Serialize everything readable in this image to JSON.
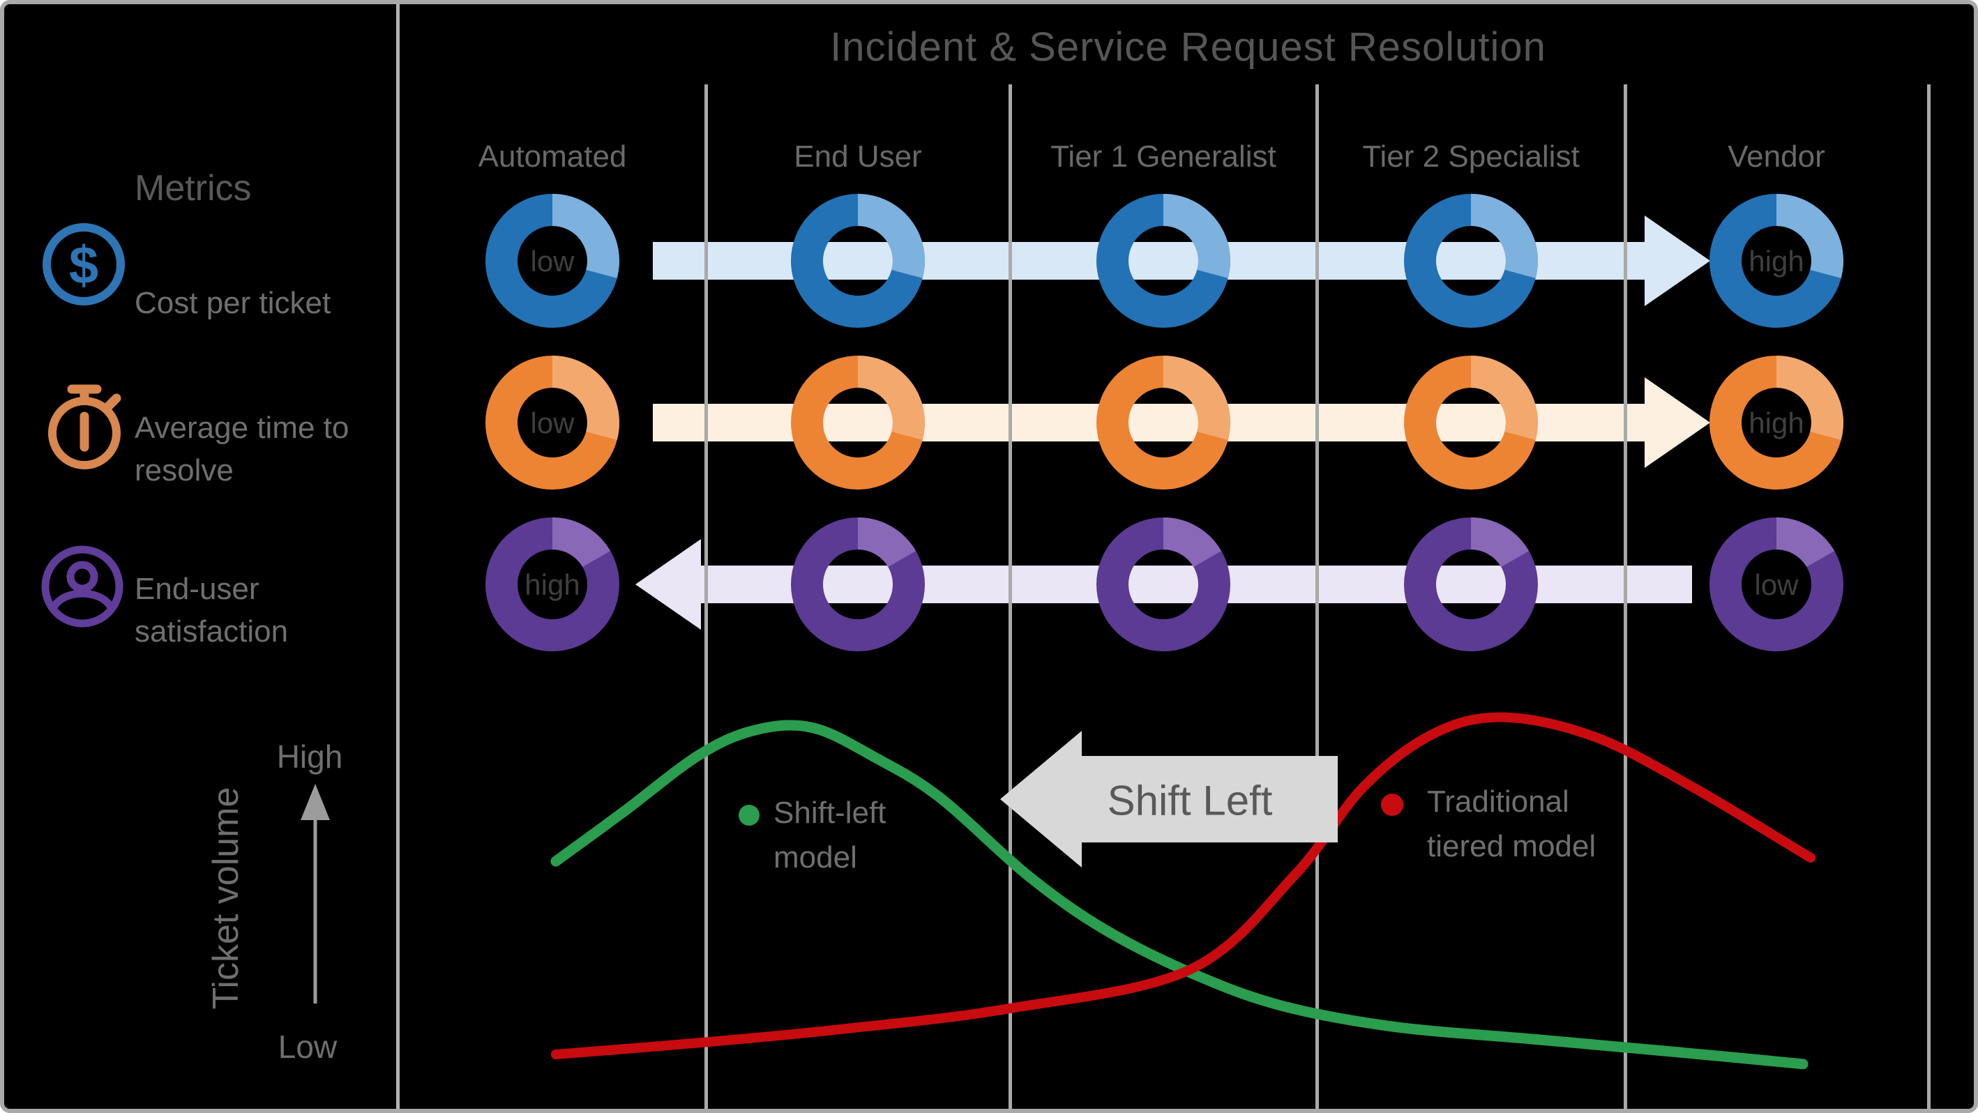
{
  "title": "Incident & Service Request Resolution",
  "metrics_panel": {
    "heading": "Metrics",
    "items": [
      {
        "icon": "dollar-circle-icon",
        "color": "#2e75b5",
        "label_lines": [
          "Cost per ticket"
        ]
      },
      {
        "icon": "stopwatch-icon",
        "color": "#d8874f",
        "label_lines": [
          "Average time to",
          "resolve"
        ]
      },
      {
        "icon": "person-circle-icon",
        "color": "#5f3d99",
        "label_lines": [
          "End-user",
          "satisfaction"
        ]
      }
    ]
  },
  "columns": [
    "Automated",
    "End User",
    "Tier 1 Generalist",
    "Tier 2 Specialist",
    "Vendor"
  ],
  "matrix_rows": [
    {
      "metric": "Cost per ticket",
      "ring_color": "#2272b5",
      "ring_color_light": "#7db1de",
      "band_color": "#d9e8f7",
      "direction": "right",
      "first_label": "low",
      "last_label": "high"
    },
    {
      "metric": "Average time to resolve",
      "ring_color": "#ed8434",
      "ring_color_light": "#f3a96d",
      "band_color": "#fdf0e1",
      "direction": "right",
      "first_label": "low",
      "last_label": "high"
    },
    {
      "metric": "End-user satisfaction",
      "ring_color": "#5b3b94",
      "ring_color_light": "#8a68b8",
      "band_color": "#eae6f5",
      "direction": "left",
      "first_label": "high",
      "last_label": "low"
    }
  ],
  "shift_arrow": {
    "label": "Shift Left",
    "color": "#d8d8d8",
    "text_color": "#595959"
  },
  "volume_axis": {
    "label": "Ticket volume",
    "top_label": "High",
    "bottom_label": "Low"
  },
  "chart_data": {
    "type": "line",
    "ylabel": "Ticket volume",
    "y_range_labels": [
      "Low",
      "High"
    ],
    "x_categories": [
      "Automated",
      "End User",
      "Tier 1 Generalist",
      "Tier 2 Specialist",
      "Vendor"
    ],
    "annotation": "Shift Left",
    "legend": [
      {
        "name": "Shift-left model",
        "label_lines": [
          "Shift-left",
          "model"
        ],
        "color": "#2a9d4e"
      },
      {
        "name": "Traditional tiered model",
        "label_lines": [
          "Traditional",
          "tiered model"
        ],
        "color": "#c80b0f"
      }
    ],
    "series": [
      {
        "name": "Shift-left model",
        "color": "#2a9d4e",
        "peak_at": "End User",
        "points": [
          [
            0.006,
            0.59
          ],
          [
            0.06,
            0.73
          ],
          [
            0.12,
            0.89
          ],
          [
            0.165,
            0.96
          ],
          [
            0.21,
            0.965
          ],
          [
            0.26,
            0.88
          ],
          [
            0.31,
            0.77
          ],
          [
            0.38,
            0.55
          ],
          [
            0.44,
            0.4
          ],
          [
            0.51,
            0.275
          ],
          [
            0.58,
            0.185
          ],
          [
            0.67,
            0.125
          ],
          [
            0.78,
            0.09
          ],
          [
            0.89,
            0.055
          ],
          [
            0.994,
            0.02
          ]
        ]
      },
      {
        "name": "Traditional tiered model",
        "color": "#c80b0f",
        "peak_at": "Tier 2 Specialist",
        "points": [
          [
            0.006,
            0.047
          ],
          [
            0.12,
            0.08
          ],
          [
            0.232,
            0.118
          ],
          [
            0.365,
            0.176
          ],
          [
            0.508,
            0.285
          ],
          [
            0.591,
            0.55
          ],
          [
            0.646,
            0.8
          ],
          [
            0.702,
            0.95
          ],
          [
            0.757,
            0.995
          ],
          [
            0.829,
            0.94
          ],
          [
            0.906,
            0.8
          ],
          [
            1.0,
            0.6
          ]
        ]
      }
    ]
  }
}
